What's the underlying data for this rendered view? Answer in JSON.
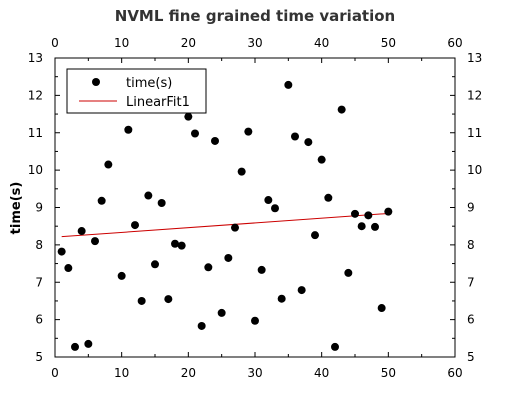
{
  "chart_data": {
    "type": "scatter",
    "title": "NVML fine grained time variation",
    "xlabel": "",
    "ylabel": "time(s)",
    "xlim": [
      0,
      60
    ],
    "ylim": [
      5,
      13
    ],
    "x_ticks": [
      0,
      10,
      20,
      30,
      40,
      50,
      60
    ],
    "y_ticks": [
      5,
      6,
      7,
      8,
      9,
      10,
      11,
      12,
      13
    ],
    "grid": false,
    "legend_position": "top-left",
    "series": [
      {
        "name": "time(s)",
        "kind": "scatter",
        "color": "#000000",
        "points": [
          [
            1,
            7.82
          ],
          [
            2,
            7.38
          ],
          [
            3,
            5.27
          ],
          [
            4,
            8.37
          ],
          [
            5,
            5.35
          ],
          [
            6,
            8.1
          ],
          [
            7,
            9.18
          ],
          [
            8,
            10.15
          ],
          [
            9,
            12.4
          ],
          [
            10,
            7.17
          ],
          [
            11,
            11.08
          ],
          [
            12,
            8.53
          ],
          [
            13,
            6.5
          ],
          [
            14,
            9.32
          ],
          [
            15,
            7.48
          ],
          [
            16,
            9.12
          ],
          [
            17,
            6.55
          ],
          [
            18,
            8.03
          ],
          [
            19,
            7.98
          ],
          [
            20,
            11.43
          ],
          [
            21,
            10.98
          ],
          [
            22,
            5.83
          ],
          [
            23,
            7.4
          ],
          [
            24,
            10.78
          ],
          [
            25,
            6.18
          ],
          [
            26,
            7.65
          ],
          [
            27,
            8.46
          ],
          [
            28,
            9.96
          ],
          [
            29,
            11.03
          ],
          [
            30,
            5.97
          ],
          [
            31,
            7.33
          ],
          [
            32,
            9.2
          ],
          [
            33,
            8.98
          ],
          [
            34,
            6.56
          ],
          [
            35,
            12.28
          ],
          [
            36,
            10.9
          ],
          [
            37,
            6.79
          ],
          [
            38,
            10.75
          ],
          [
            39,
            8.26
          ],
          [
            40,
            10.28
          ],
          [
            41,
            9.26
          ],
          [
            42,
            5.27
          ],
          [
            43,
            11.62
          ],
          [
            44,
            7.25
          ],
          [
            45,
            8.83
          ],
          [
            46,
            8.5
          ],
          [
            47,
            8.79
          ],
          [
            48,
            8.48
          ],
          [
            49,
            6.31
          ],
          [
            50,
            8.89
          ]
        ]
      },
      {
        "name": "LinearFit1",
        "kind": "line",
        "color": "#cc0000",
        "points": [
          [
            1,
            8.22
          ],
          [
            50,
            8.84
          ]
        ]
      }
    ]
  }
}
